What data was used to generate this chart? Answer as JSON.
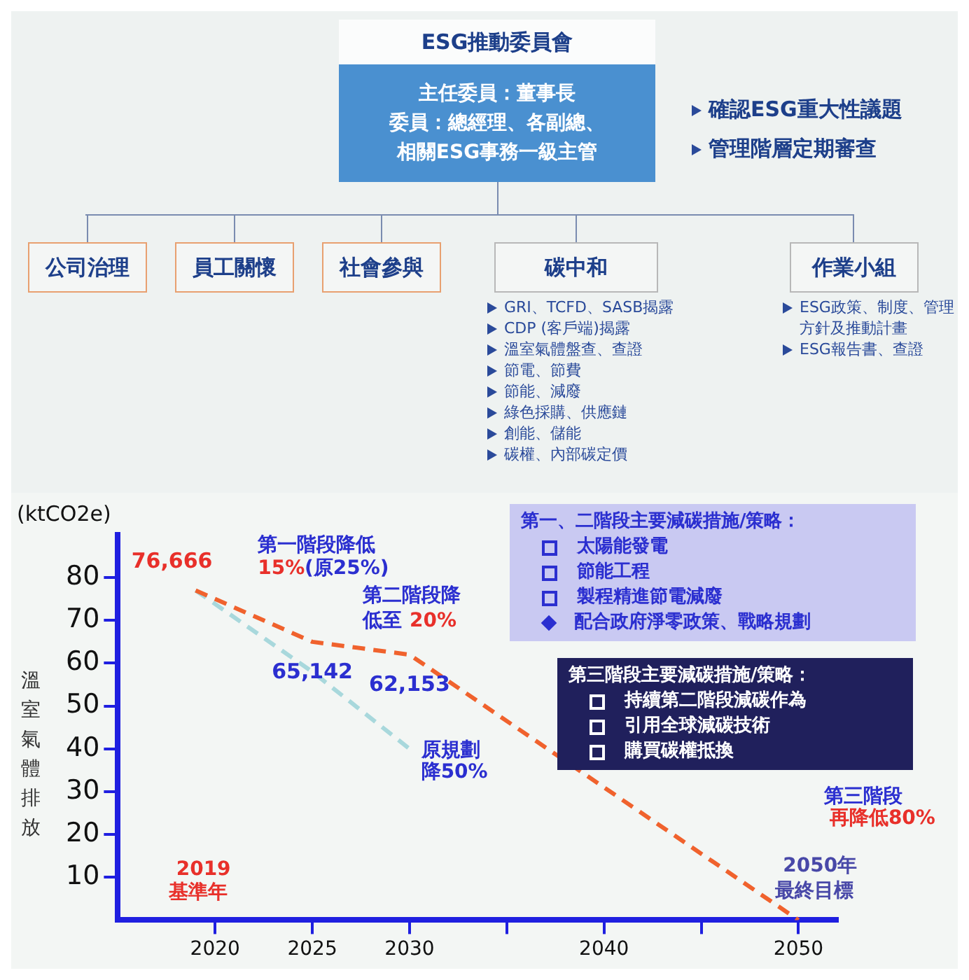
{
  "chart_data": [
    {
      "type": "other",
      "annotations": [
        "ESG推動委員會",
        "主任委員：董事長",
        "委員：總經理、各副總、相關ESG事務一級主管",
        "確認ESG重大性議題",
        "管理階層定期審查",
        "公司治理",
        "員工關懷",
        "社會參與",
        "碳中和",
        "作業小組",
        "GRI、TCFD、SASB揭露",
        "CDP (客戶端)揭露",
        "溫室氣體盤查、查證",
        "節電、節費",
        "節能、減廢",
        "綠色採購、供應鏈",
        "創能、儲能",
        "碳權、內部碳定價",
        "ESG政策、制度、管理方針及推動計畫",
        "ESG報告書、查證"
      ]
    },
    {
      "type": "line",
      "ylabel": "溫室氣體排放",
      "xlim": [
        2015,
        2052
      ],
      "ylim": [
        0,
        90
      ],
      "xticks": [
        2020,
        2025,
        2030,
        {
          "value": 2035,
          "label": null
        },
        2040,
        {
          "value": 2045,
          "label": null
        },
        2050
      ],
      "yticks": [
        10,
        20,
        30,
        40,
        50,
        60,
        70,
        80
      ],
      "grid": false,
      "legend": false,
      "marker": "none",
      "line_style": "dashed",
      "series": [
        {
          "color": "#f0622d",
          "x": [
            2019,
            2025,
            2030,
            2050
          ],
          "values": [
            77,
            65,
            62,
            0
          ]
        },
        {
          "color": "#a8d8dc",
          "x": [
            2019,
            2025,
            2030
          ],
          "values": [
            77,
            58,
            40
          ]
        }
      ],
      "annotations": [
        "(ktCO2e)",
        "第一、二階段主要減碳措施/策略：",
        "太陽能發電",
        "節能工程",
        "製程精進節電減廢",
        "配合政府淨零政策、戰略規劃",
        "第三階段主要減碳措施/策略：",
        "持續第二階段減碳作為",
        "引用全球減碳技術",
        "購買碳權抵換",
        {
          "text": "76,666",
          "x": 2019,
          "y": 77
        },
        {
          "text": "65,142",
          "x": 2025,
          "y": 65
        },
        {
          "text": "62,153",
          "x": 2030,
          "y": 62
        },
        "第一階段降低",
        "15%",
        "(原25%)",
        "第二階段降",
        "低至",
        "20%",
        "原規劃",
        "降50%",
        "2019",
        "基準年",
        "第三階段",
        "再降低80%",
        "2050年",
        "最終目標"
      ]
    }
  ]
}
